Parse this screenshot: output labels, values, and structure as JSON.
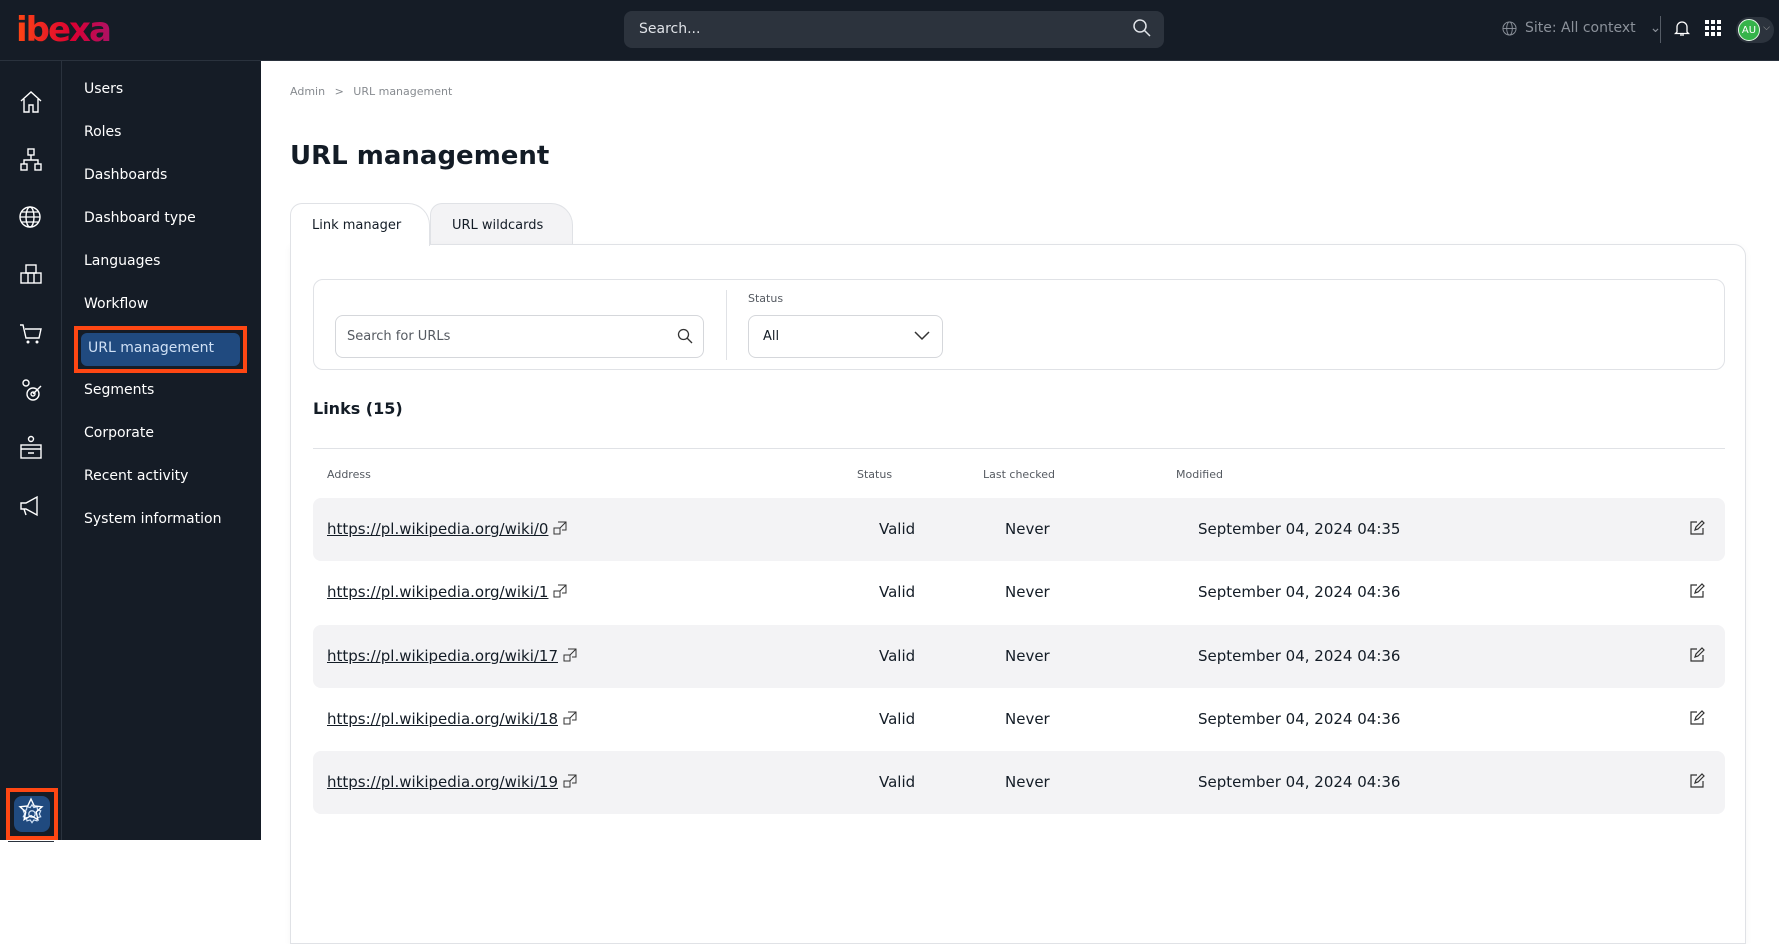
{
  "header": {
    "logo": "ibexa",
    "search_placeholder": "Search...",
    "site_context": "Site: All context",
    "avatar_initials": "AU"
  },
  "rail": {
    "icons": [
      "home-icon",
      "structure-icon",
      "globe-icon",
      "boxes-icon",
      "cart-icon",
      "customer-target-icon",
      "desk-icon",
      "megaphone-icon"
    ],
    "bottom": [
      "gear-icon",
      "star-icon"
    ],
    "active": "gear-icon"
  },
  "sidebar": {
    "items": [
      "Users",
      "Roles",
      "Dashboards",
      "Dashboard type",
      "Languages",
      "Workflow",
      "URL management",
      "Segments",
      "Corporate",
      "Recent activity",
      "System information"
    ],
    "active": "URL management"
  },
  "breadcrumb": {
    "root": "Admin",
    "sep": ">",
    "current": "URL management"
  },
  "page_title": "URL management",
  "tabs": [
    {
      "label": "Link manager",
      "active": true
    },
    {
      "label": "URL wildcards",
      "active": false
    }
  ],
  "filters": {
    "search_placeholder": "Search for URLs",
    "status_label": "Status",
    "status_value": "All"
  },
  "links_heading": "Links (15)",
  "table": {
    "columns": [
      "Address",
      "Status",
      "Last checked",
      "Modified"
    ],
    "rows": [
      {
        "address": "https://pl.wikipedia.org/wiki/0",
        "status": "Valid",
        "last_checked": "Never",
        "modified": "September 04, 2024 04:35"
      },
      {
        "address": "https://pl.wikipedia.org/wiki/1",
        "status": "Valid",
        "last_checked": "Never",
        "modified": "September 04, 2024 04:36"
      },
      {
        "address": "https://pl.wikipedia.org/wiki/17",
        "status": "Valid",
        "last_checked": "Never",
        "modified": "September 04, 2024 04:36"
      },
      {
        "address": "https://pl.wikipedia.org/wiki/18",
        "status": "Valid",
        "last_checked": "Never",
        "modified": "September 04, 2024 04:36"
      },
      {
        "address": "https://pl.wikipedia.org/wiki/19",
        "status": "Valid",
        "last_checked": "Never",
        "modified": "September 04, 2024 04:36"
      }
    ]
  },
  "colors": {
    "topbar": "#151c26",
    "active": "#204a7f",
    "highlight": "#ff4713"
  }
}
